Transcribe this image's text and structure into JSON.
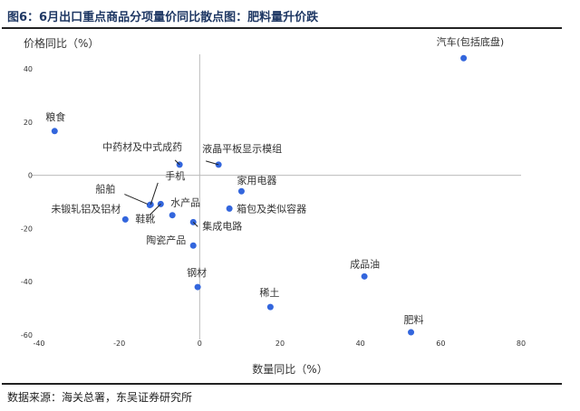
{
  "header": {
    "title": "图6：6月出口重点商品分项量价同比散点图：肥料量升价跌"
  },
  "footer": {
    "source": "数据来源：海关总署，东吴证券研究所"
  },
  "chart_data": {
    "type": "scatter",
    "title": "6月出口重点商品分项量价同比散点图：肥料量升价跌",
    "xlabel": "数量同比（%）",
    "ylabel": "价格同比（%）",
    "xlim": [
      -40,
      80
    ],
    "ylim": [
      -60,
      40
    ],
    "xticks": [
      -40,
      -20,
      0,
      20,
      40,
      60,
      80
    ],
    "yticks": [
      40,
      20,
      0,
      -20,
      -40,
      -60
    ],
    "grid": false,
    "color": "#3366dd",
    "points": [
      {
        "label": "汽车(包括底盘)",
        "x": 65.7,
        "y": 44
      },
      {
        "label": "粮食",
        "x": -36.1,
        "y": 16.6
      },
      {
        "label": "中药材及中式成药",
        "x": -5,
        "y": 4
      },
      {
        "label": "液晶平板显示模组",
        "x": 4.7,
        "y": 4
      },
      {
        "label": "家用电器",
        "x": 10.4,
        "y": -6
      },
      {
        "label": "箱包及类似容器",
        "x": 7.4,
        "y": -12.5
      },
      {
        "label": "船舶",
        "x": -12.4,
        "y": -11.2
      },
      {
        "label": "手机",
        "x": -12.2,
        "y": -11.0
      },
      {
        "label": "鞋靴",
        "x": -9.7,
        "y": -10.8
      },
      {
        "label": "水产品",
        "x": -6.8,
        "y": -15
      },
      {
        "label": "未锻轧铝及铝材",
        "x": -18.5,
        "y": -16.6
      },
      {
        "label": "集成电路",
        "x": -1.6,
        "y": -17.6
      },
      {
        "label": "陶瓷产品",
        "x": -1.6,
        "y": -26.4
      },
      {
        "label": "钢材",
        "x": -0.5,
        "y": -42
      },
      {
        "label": "稀土",
        "x": 17.6,
        "y": -49.5
      },
      {
        "label": "成品油",
        "x": 41,
        "y": -38
      },
      {
        "label": "肥料",
        "x": 52.6,
        "y": -59
      }
    ]
  }
}
